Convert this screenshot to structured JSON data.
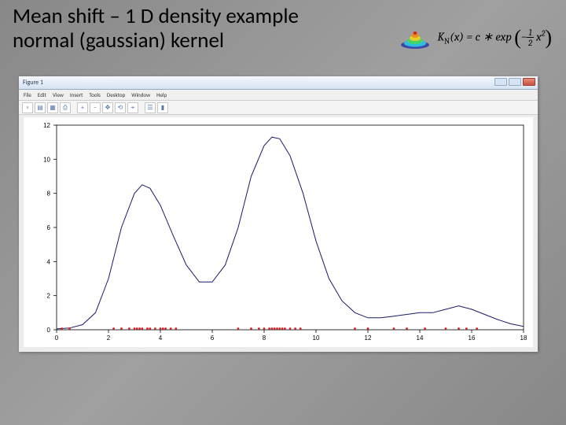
{
  "title": {
    "line1": "Mean shift – 1 D density example",
    "line2": "normal (gaussian) kernel"
  },
  "formula": {
    "lhs": "K",
    "lhs_sub": "N",
    "lhs_arg": "(x)",
    "eq": " = c ∗ exp",
    "minus": "−",
    "frac_num": "1",
    "frac_den": "2",
    "x2": "x",
    "sup2": "2"
  },
  "window": {
    "title": "Figure 1",
    "menu": [
      "File",
      "Edit",
      "View",
      "Insert",
      "Tools",
      "Desktop",
      "Window",
      "Help"
    ],
    "toolbar_icons": [
      "new-icon",
      "open-icon",
      "save-icon",
      "print-icon",
      "sep",
      "zoom-in-icon",
      "zoom-out-icon",
      "pan-icon",
      "rotate-icon",
      "datacursor-icon",
      "sep",
      "legend-icon",
      "colorbar-icon"
    ]
  },
  "chart": {
    "type": "line",
    "background_color": "#ffffff",
    "curve_color": "#1a1a6a",
    "datapoint_color": "#d62020",
    "axis_color": "#000000",
    "xlim": [
      0,
      18
    ],
    "ylim": [
      0,
      12
    ],
    "xtick_step": 2,
    "ytick_step": 2,
    "tick_fontsize": 8,
    "curve": [
      [
        0,
        0.05
      ],
      [
        0.5,
        0.1
      ],
      [
        1,
        0.3
      ],
      [
        1.5,
        1.0
      ],
      [
        2,
        3.0
      ],
      [
        2.5,
        6.0
      ],
      [
        3,
        8.0
      ],
      [
        3.3,
        8.5
      ],
      [
        3.6,
        8.3
      ],
      [
        4,
        7.3
      ],
      [
        4.5,
        5.5
      ],
      [
        5,
        3.8
      ],
      [
        5.5,
        2.8
      ],
      [
        6,
        2.8
      ],
      [
        6.5,
        3.8
      ],
      [
        7,
        6.0
      ],
      [
        7.5,
        9.0
      ],
      [
        8,
        10.8
      ],
      [
        8.3,
        11.3
      ],
      [
        8.6,
        11.2
      ],
      [
        9,
        10.2
      ],
      [
        9.5,
        8.0
      ],
      [
        10,
        5.2
      ],
      [
        10.5,
        3.0
      ],
      [
        11,
        1.7
      ],
      [
        11.5,
        1.0
      ],
      [
        12,
        0.7
      ],
      [
        12.5,
        0.7
      ],
      [
        13,
        0.8
      ],
      [
        13.5,
        0.9
      ],
      [
        14,
        1.0
      ],
      [
        14.5,
        1.0
      ],
      [
        15,
        1.2
      ],
      [
        15.5,
        1.4
      ],
      [
        16,
        1.2
      ],
      [
        16.5,
        0.9
      ],
      [
        17,
        0.6
      ],
      [
        17.5,
        0.35
      ],
      [
        18,
        0.2
      ]
    ],
    "data_points": [
      0.2,
      0.5,
      2.2,
      2.5,
      2.8,
      3.0,
      3.1,
      3.2,
      3.3,
      3.5,
      3.6,
      3.8,
      4.0,
      4.1,
      4.2,
      4.4,
      4.6,
      7.0,
      7.5,
      7.8,
      8.0,
      8.2,
      8.3,
      8.4,
      8.5,
      8.6,
      8.7,
      8.8,
      9.0,
      9.2,
      9.4,
      11.5,
      12.0,
      13.0,
      13.5,
      14.2,
      15.0,
      15.5,
      15.8,
      16.2
    ]
  },
  "colors": {
    "slide_bg_start": "#888888",
    "slide_bg_end": "#a0a0a0",
    "window_bg": "#ececec"
  }
}
